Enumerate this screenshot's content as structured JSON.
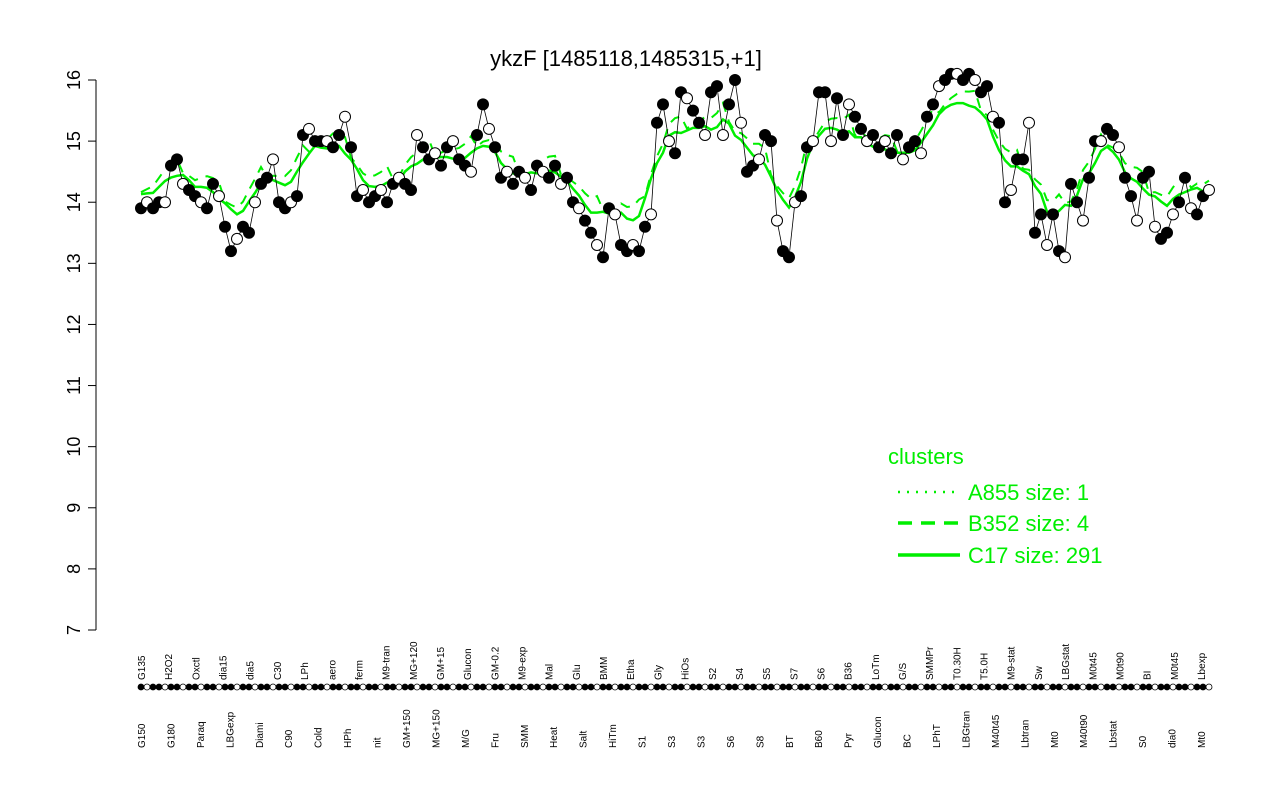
{
  "chart_data": {
    "type": "line",
    "title": "ykzF [1485118,1485315,+1]",
    "xlabel": "",
    "ylabel": "",
    "ylim": [
      7,
      16
    ],
    "y_ticks": [
      "7",
      "8",
      "9",
      "10",
      "11",
      "12",
      "13",
      "14",
      "15",
      "16"
    ],
    "grid": false,
    "legend": {
      "title": "clusters",
      "position": "bottom-right",
      "entries": [
        {
          "label": "A855 size: 1",
          "style": "dotted"
        },
        {
          "label": "B352 size: 4",
          "style": "dashed"
        },
        {
          "label": "C17 size: 291",
          "style": "solid"
        }
      ]
    },
    "colors": {
      "series": "#00ee00",
      "point_fill": "#000000",
      "open_point_fill": "#ffffff"
    },
    "x_labels_upper": [
      "G135",
      "H2O2",
      "Oxctl",
      "dia15",
      "dia5",
      "C30",
      "LPh",
      "aero",
      "ferm",
      "M9-tran",
      "MG+120",
      "GM+15",
      "Glucon",
      "GM-0.2",
      "M9-exp",
      "Mal",
      "Glu",
      "BMM",
      "Etha",
      "Gly",
      "HiOs",
      "S2",
      "S4",
      "S5",
      "S7",
      "S6",
      "B36",
      "LoTm",
      "G/S",
      "SMMPr",
      "T0.30H",
      "T5.0H",
      "M9-stat",
      "Sw",
      "LBGstat",
      "M0t45",
      "M0t90",
      "BI",
      "M0t45",
      "Lbexp"
    ],
    "x_labels_lower": [
      "G150",
      "G180",
      "Paraq",
      "LBGexp",
      "Diami",
      "C90",
      "Cold",
      "HPh",
      "nit",
      "GM+150",
      "MG+150",
      "M/G",
      "Fru",
      "SMM",
      "Heat",
      "Salt",
      "HiTm",
      "S1",
      "S3",
      "S3",
      "S6",
      "S8",
      "BT",
      "B60",
      "Pyr",
      "Glucon",
      "BC",
      "LPhT",
      "LBGtran",
      "M40t45",
      "Lbtran",
      "Mt0",
      "M40t90",
      "Lbstat",
      "S0",
      "dia0",
      "Mt0"
    ],
    "series": [
      {
        "values": [
          13.9,
          14.0,
          13.9,
          14.0,
          14.0,
          14.6,
          14.7,
          14.3,
          14.2,
          14.1,
          14.0,
          13.9,
          14.3,
          14.1,
          13.6,
          13.2,
          13.4,
          13.6,
          13.5,
          14.0,
          14.3,
          14.4,
          14.7,
          14.0,
          13.9,
          14.0,
          14.1,
          15.1,
          15.2,
          15.0,
          15.0,
          15.0,
          14.9,
          15.1,
          15.4,
          14.9,
          14.1,
          14.2,
          14.0,
          14.1,
          14.2,
          14.0,
          14.3,
          14.4,
          14.3,
          14.2,
          15.1,
          14.9,
          14.7,
          14.8,
          14.6,
          14.9,
          15.0,
          14.7,
          14.6,
          14.5,
          15.1,
          15.6,
          15.2,
          14.9,
          14.4,
          14.5,
          14.3,
          14.5,
          14.4,
          14.2,
          14.6,
          14.5,
          14.4,
          14.6,
          14.3,
          14.4,
          14.0,
          13.9,
          13.7,
          13.5,
          13.3,
          13.1,
          13.9,
          13.8,
          13.3,
          13.2,
          13.3,
          13.2,
          13.6,
          13.8,
          15.3,
          15.6,
          15.0,
          14.8,
          15.8,
          15.7,
          15.5,
          15.3,
          15.1,
          15.8,
          15.9,
          15.1,
          15.6,
          16.0,
          15.3,
          14.5,
          14.6,
          14.7,
          15.1,
          15.0,
          13.7,
          13.2,
          13.1,
          14.0,
          14.1,
          14.9,
          15.0,
          15.8,
          15.8,
          15.0,
          15.7,
          15.1,
          15.6,
          15.4,
          15.2,
          15.0,
          15.1,
          14.9,
          15.0,
          14.8,
          15.1,
          14.7,
          14.9,
          15.0,
          14.8,
          15.4,
          15.6,
          15.9,
          16.0,
          16.1,
          16.1,
          16.0,
          16.1,
          16.0,
          15.8,
          15.9,
          15.4,
          15.3,
          14.0,
          14.2,
          14.7,
          14.7,
          15.3,
          13.5,
          13.8,
          13.3,
          13.8,
          13.2,
          13.1,
          14.3,
          14.0,
          13.7,
          14.4,
          15.0,
          15.0,
          15.2,
          15.1,
          14.9,
          14.4,
          14.1,
          13.7,
          14.4,
          14.5,
          13.6,
          13.4,
          13.5,
          13.8,
          14.0,
          14.4,
          13.9,
          13.8,
          14.1,
          14.2
        ]
      }
    ]
  }
}
